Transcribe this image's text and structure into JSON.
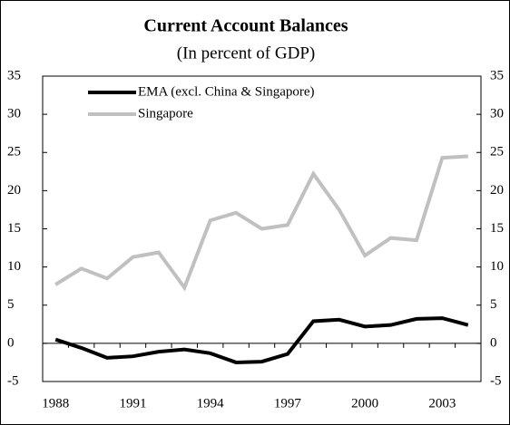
{
  "chart_data": {
    "type": "line",
    "title": "Current Account Balances",
    "subtitle": "(In percent of GDP)",
    "categories": [
      "1988",
      null,
      null,
      "1991",
      null,
      null,
      "1994",
      null,
      null,
      "1997",
      null,
      null,
      "2000",
      null,
      null,
      "2003",
      null
    ],
    "series": [
      {
        "name": "EMA (excl. China & Singapore)",
        "color": "#000000",
        "values": [
          0.5,
          -0.6,
          -1.9,
          -1.7,
          -1.1,
          -0.8,
          -1.3,
          -2.5,
          -2.4,
          -1.4,
          2.9,
          3.1,
          2.2,
          2.4,
          3.2,
          3.3,
          2.4
        ]
      },
      {
        "name": "Singapore",
        "color": "#c0c0c0",
        "values": [
          7.7,
          9.8,
          8.5,
          11.3,
          11.9,
          7.3,
          16.1,
          17.1,
          15.0,
          15.5,
          22.2,
          17.5,
          11.5,
          13.8,
          13.5,
          24.3,
          24.5
        ]
      }
    ],
    "ylim": [
      -5,
      35
    ],
    "yticks": [
      -5,
      0,
      5,
      10,
      15,
      20,
      25,
      30,
      35
    ],
    "y2lim": [
      -5,
      35
    ],
    "y2ticks": [
      -5,
      0,
      5,
      10,
      15,
      20,
      25,
      30,
      35
    ],
    "legend": "upper left"
  }
}
